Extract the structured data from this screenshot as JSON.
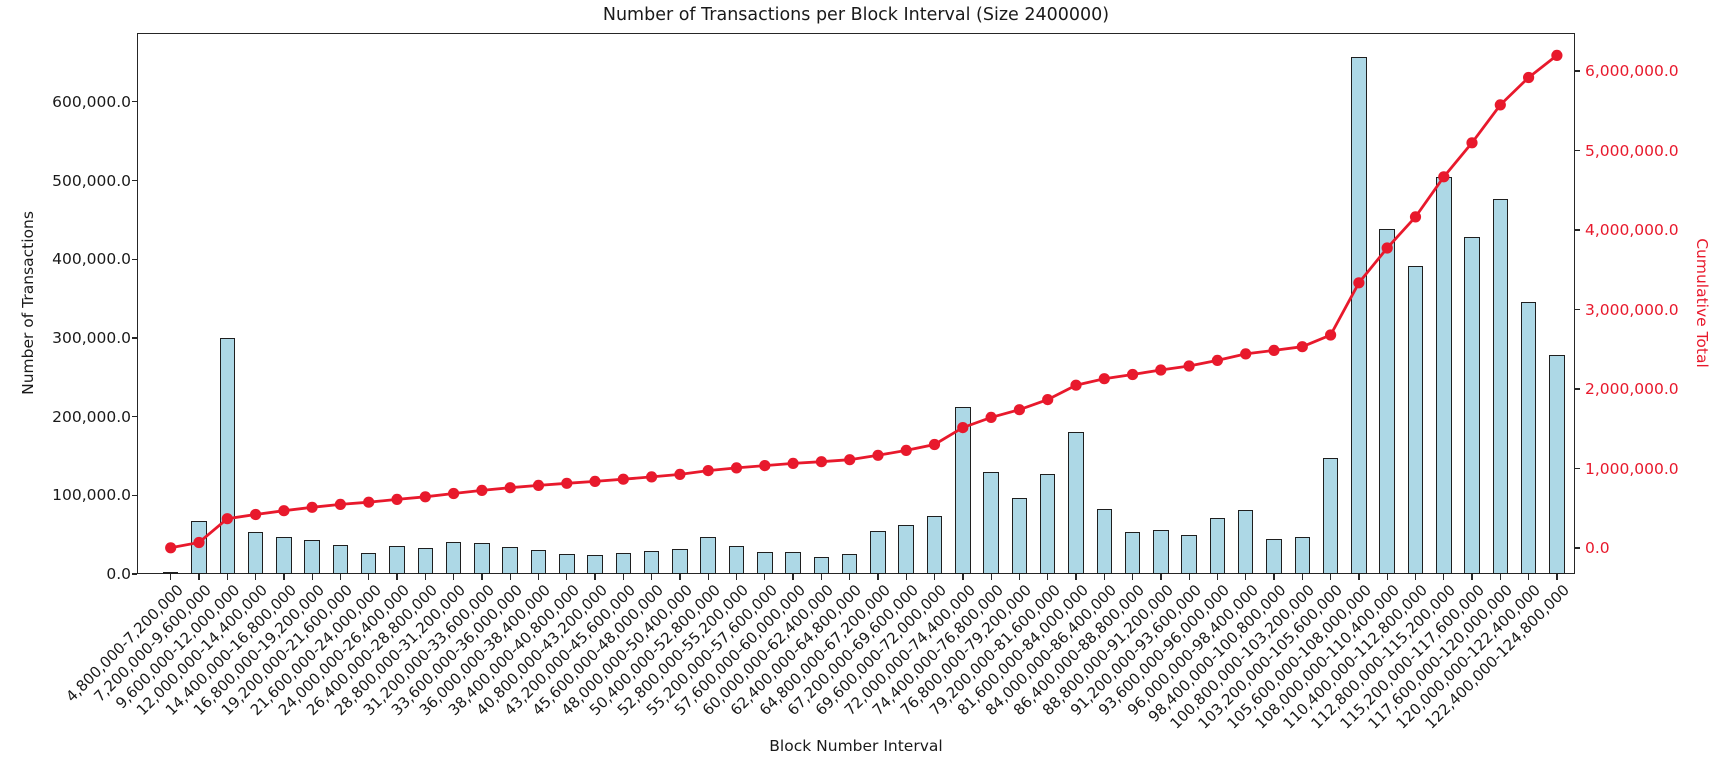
{
  "chart_data": {
    "type": "combo-bar-line",
    "title": "Number of Transactions per Block Interval (Size 2400000)",
    "xlabel": "Block Number Interval",
    "ylabel_left": "Number of Transactions",
    "ylabel_right": "Cumulative Total",
    "grid": false,
    "legend_position": "none",
    "colors": {
      "bar_fill": "#add8e6",
      "bar_edge": "#1f1f1f",
      "line": "#e8192c",
      "axis_text": "#1a1a1a",
      "right_axis_text": "#e8192c",
      "background": "#ffffff"
    },
    "categories": [
      "4,800,000-7,200,000",
      "7,200,000-9,600,000",
      "9,600,000-12,000,000",
      "12,000,000-14,400,000",
      "14,400,000-16,800,000",
      "16,800,000-19,200,000",
      "19,200,000-21,600,000",
      "21,600,000-24,000,000",
      "24,000,000-26,400,000",
      "26,400,000-28,800,000",
      "28,800,000-31,200,000",
      "31,200,000-33,600,000",
      "33,600,000-36,000,000",
      "36,000,000-38,400,000",
      "38,400,000-40,800,000",
      "40,800,000-43,200,000",
      "43,200,000-45,600,000",
      "45,600,000-48,000,000",
      "48,000,000-50,400,000",
      "50,400,000-52,800,000",
      "52,800,000-55,200,000",
      "55,200,000-57,600,000",
      "57,600,000-60,000,000",
      "60,000,000-62,400,000",
      "62,400,000-64,800,000",
      "64,800,000-67,200,000",
      "67,200,000-69,600,000",
      "69,600,000-72,000,000",
      "72,000,000-74,400,000",
      "74,400,000-76,800,000",
      "76,800,000-79,200,000",
      "79,200,000-81,600,000",
      "81,600,000-84,000,000",
      "84,000,000-86,400,000",
      "86,400,000-88,800,000",
      "88,800,000-91,200,000",
      "91,200,000-93,600,000",
      "93,600,000-96,000,000",
      "96,000,000-98,400,000",
      "98,400,000-100,800,000",
      "100,800,000-103,200,000",
      "103,200,000-105,600,000",
      "105,600,000-108,000,000",
      "108,000,000-110,400,000",
      "110,400,000-112,800,000",
      "112,800,000-115,200,000",
      "115,200,000-117,600,000",
      "117,600,000-120,000,000",
      "120,000,000-122,400,000",
      "122,400,000-124,800,000"
    ],
    "bar_series": {
      "name": "Number of Transactions",
      "values": [
        2000,
        67000,
        300000,
        53000,
        47000,
        43000,
        37000,
        27000,
        35000,
        33000,
        41000,
        39000,
        34000,
        30000,
        26000,
        24000,
        27000,
        29000,
        32000,
        47000,
        35000,
        28000,
        28000,
        21000,
        26000,
        55000,
        62000,
        74000,
        212000,
        129000,
        97000,
        127000,
        181000,
        82000,
        53000,
        56000,
        50000,
        71000,
        81000,
        44000,
        47000,
        147000,
        657000,
        438000,
        391000,
        504000,
        428000,
        476000,
        345000,
        278000
      ]
    },
    "line_series": {
      "name": "Cumulative Total",
      "values": [
        2000,
        69000,
        369000,
        422000,
        469000,
        512000,
        549000,
        576000,
        611000,
        644000,
        685000,
        724000,
        758000,
        788000,
        814000,
        838000,
        865000,
        894000,
        926000,
        973000,
        1008000,
        1036000,
        1064000,
        1085000,
        1111000,
        1166000,
        1228000,
        1302000,
        1514000,
        1643000,
        1740000,
        1867000,
        2048000,
        2130000,
        2183000,
        2239000,
        2289000,
        2360000,
        2441000,
        2485000,
        2532000,
        2679000,
        3336000,
        3774000,
        4165000,
        4669000,
        5097000,
        5573000,
        5918000,
        6196000
      ]
    },
    "left_axis": {
      "tick_values": [
        0,
        100000,
        200000,
        300000,
        400000,
        500000,
        600000
      ],
      "tick_labels": [
        "0.0",
        "100,000.0",
        "200,000.0",
        "300,000.0",
        "400,000.0",
        "500,000.0",
        "600,000.0"
      ],
      "range": [
        0,
        687000
      ]
    },
    "right_axis": {
      "tick_values": [
        0,
        1000000,
        2000000,
        3000000,
        4000000,
        5000000,
        6000000
      ],
      "tick_labels": [
        "0.0",
        "1,000,000.0",
        "2,000,000.0",
        "3,000,000.0",
        "4,000,000.0",
        "5,000,000.0",
        "6,000,000.0"
      ]
    }
  }
}
